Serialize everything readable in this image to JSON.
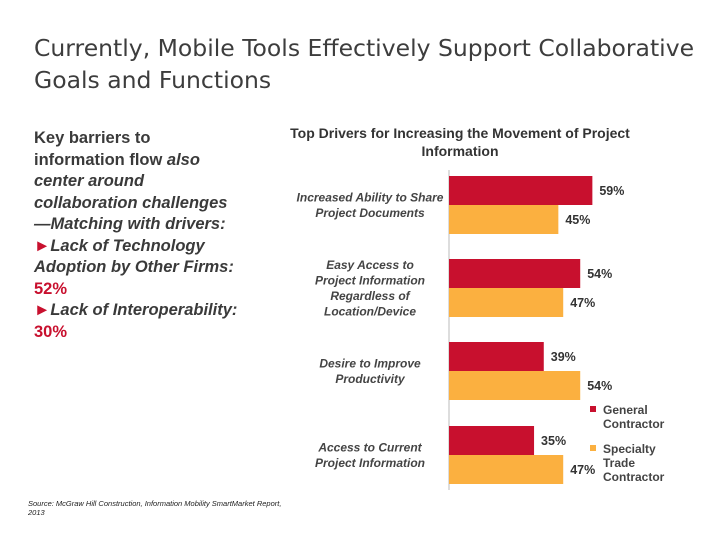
{
  "slide": {
    "title": "Currently, Mobile Tools Effectively Support Collaborative Goals and Functions"
  },
  "left_panel": {
    "line1": "Key barriers to information flow ",
    "line1_italic": "also center around collaboration challenges—Matching with drivers:",
    "bullet_glyph": "►",
    "bullet1_text": "Lack of Technology Adoption by Other Firms: ",
    "bullet1_value": "52%",
    "bullet2_text": "Lack of Interoperability: ",
    "bullet2_value": "30%"
  },
  "source": "Source: McGraw Hill Construction, Information Mobility SmartMarket Report, 2013",
  "chart_data": {
    "type": "bar",
    "orientation": "horizontal",
    "title": "Top Drivers for Increasing the  Movement of Project Information",
    "categories": [
      "Increased Ability to Share Project Documents",
      "Easy Access to Project Information Regardless of Location/Device",
      "Desire to Improve Productivity",
      "Access to Current Project Information"
    ],
    "series": [
      {
        "name": "General Contractor",
        "values": [
          59,
          54,
          39,
          35
        ],
        "color": "#c8102e"
      },
      {
        "name": "Specialty Trade Contractor",
        "values": [
          45,
          47,
          54,
          47
        ],
        "color": "#fbb040"
      }
    ],
    "value_suffix": "%",
    "xlim": [
      0,
      100
    ],
    "grid": false,
    "legend": "bottom-right"
  }
}
